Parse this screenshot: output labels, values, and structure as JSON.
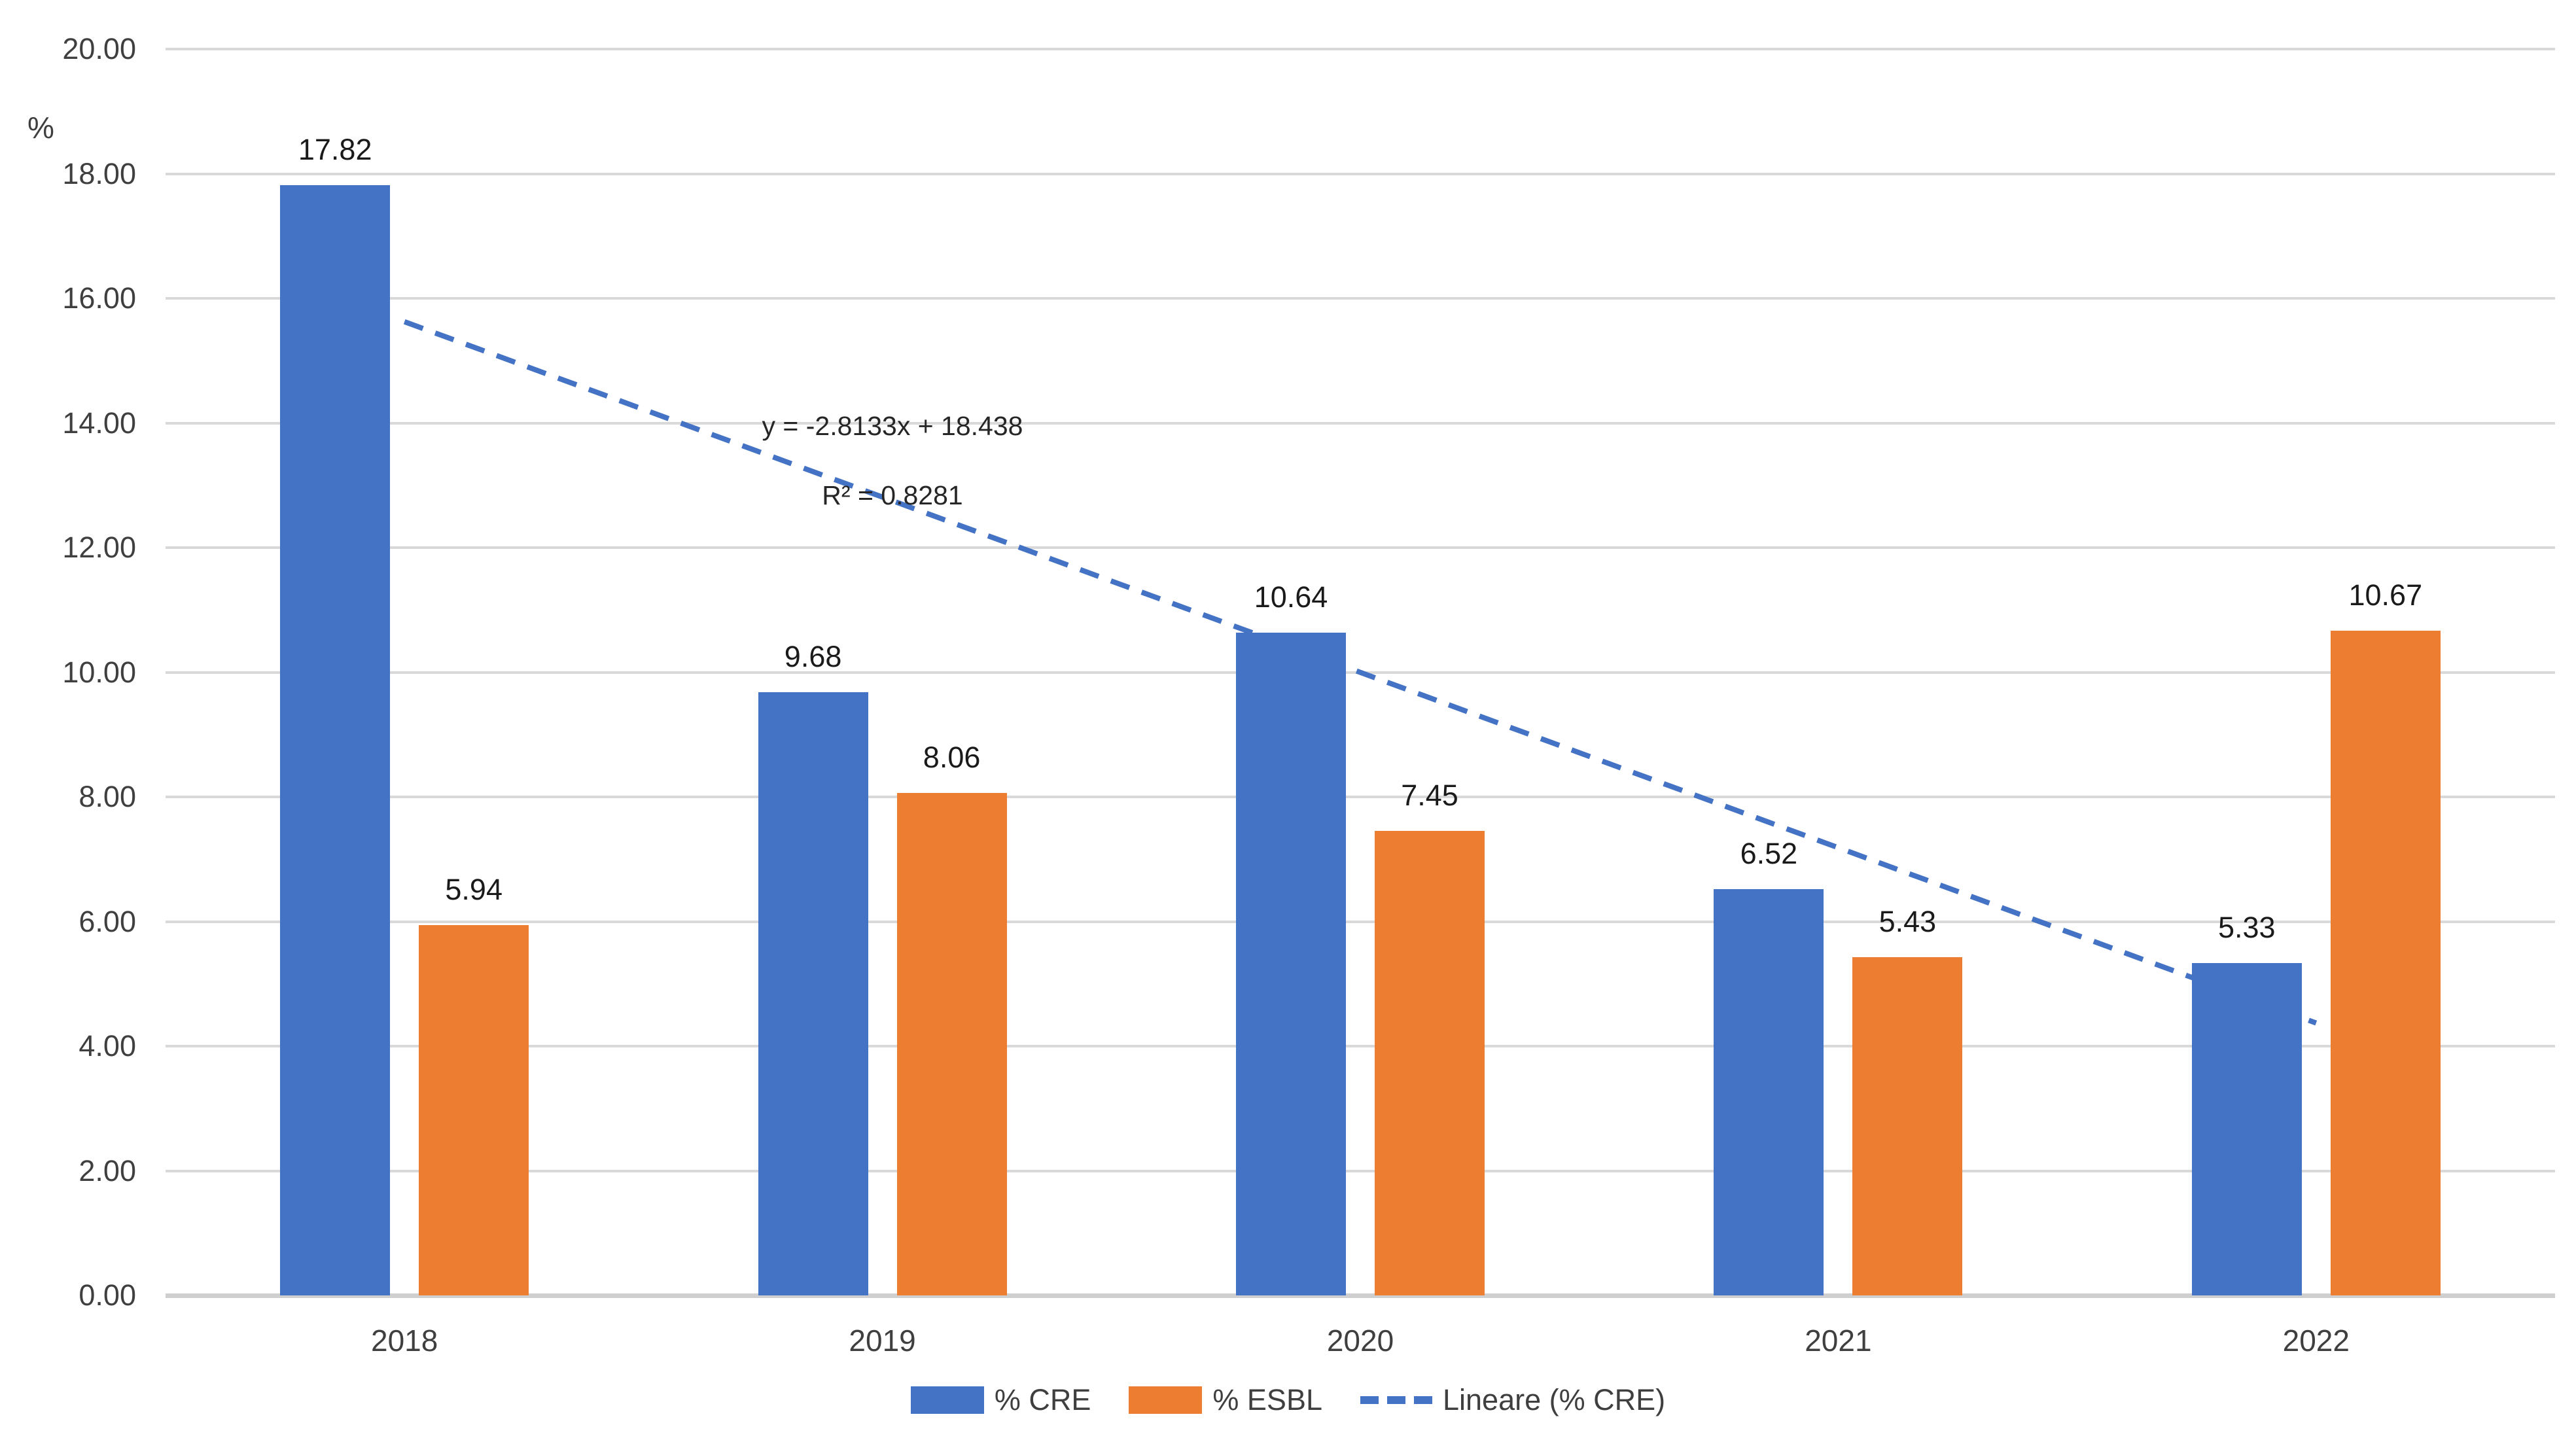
{
  "chart_data": {
    "type": "bar",
    "title": "",
    "categories": [
      "2018",
      "2019",
      "2020",
      "2021",
      "2022"
    ],
    "series": [
      {
        "name": "% CRE",
        "color": "#4472C4",
        "values": [
          17.82,
          9.68,
          10.64,
          6.52,
          5.33
        ]
      },
      {
        "name": "% ESBL",
        "color": "#ED7D31",
        "values": [
          5.94,
          8.06,
          7.45,
          5.43,
          10.67
        ]
      }
    ],
    "trendline": {
      "name": "Lineare (% CRE)",
      "color": "#4472C4",
      "style": "dashed",
      "slope": -2.8133,
      "intercept": 18.438,
      "equation_text": "y = -2.8133x + 18.438",
      "r2_text": "R² = 0.8281"
    },
    "y_axis": {
      "label": "%",
      "min": 0,
      "max": 20,
      "step": 2,
      "tick_labels": [
        "0.00",
        "2.00",
        "4.00",
        "6.00",
        "8.00",
        "10.00",
        "12.00",
        "14.00",
        "16.00",
        "18.00",
        "20.00"
      ]
    },
    "x_axis": {
      "tick_labels": [
        "2018",
        "2019",
        "2020",
        "2021",
        "2022"
      ]
    },
    "data_labels": {
      "% CRE": [
        "17.82",
        "9.68",
        "10.64",
        "6.52",
        "5.33"
      ],
      "% ESBL": [
        "5.94",
        "8.06",
        "7.45",
        "5.43",
        "10.67"
      ]
    },
    "legend": [
      "% CRE",
      "% ESBL",
      "Lineare (% CRE)"
    ],
    "legend_position": "bottom",
    "grid": true,
    "colors": {
      "gridline": "#d9d9d9",
      "axis_line": "#cfcfcf",
      "tick_text": "#3f3f3f",
      "label_text": "#1a1a1a"
    }
  }
}
